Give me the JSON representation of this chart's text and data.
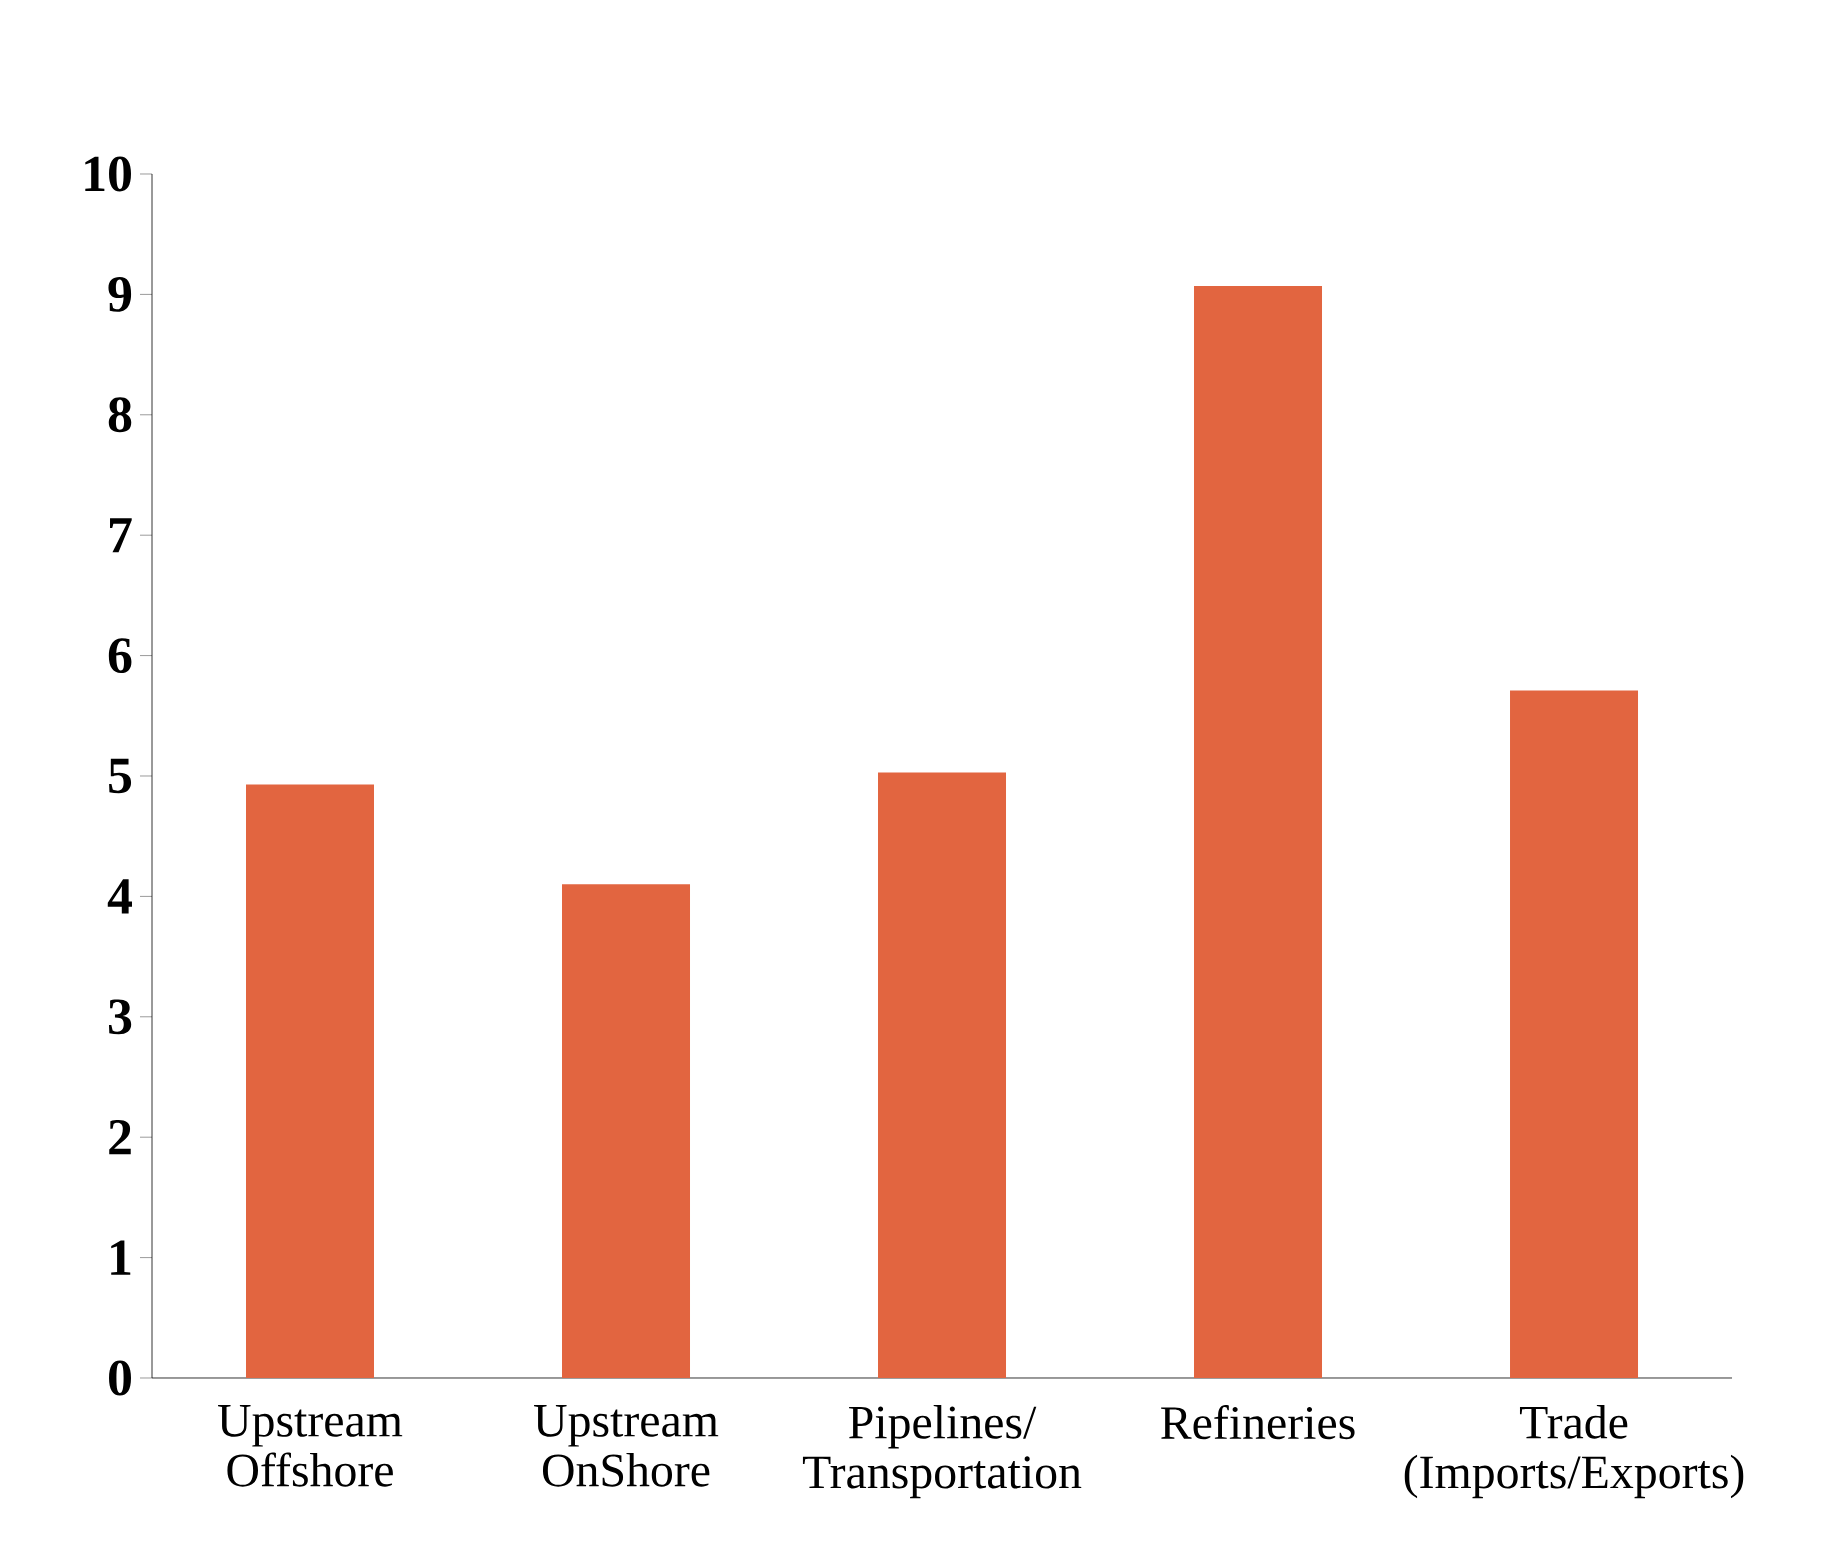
{
  "chart_data": {
    "type": "bar",
    "categories": [
      "Upstream Offshore",
      "Upstream OnShore",
      "Pipelines/ Transportation",
      "Refineries",
      "Trade (Imports/Exports)"
    ],
    "values": [
      4.93,
      4.1,
      5.03,
      9.07,
      5.71
    ],
    "color": "#e26540",
    "ylim": [
      0,
      10
    ],
    "yticks": [
      0,
      1,
      2,
      3,
      4,
      5,
      6,
      7,
      8,
      9,
      10
    ],
    "grid": false
  }
}
